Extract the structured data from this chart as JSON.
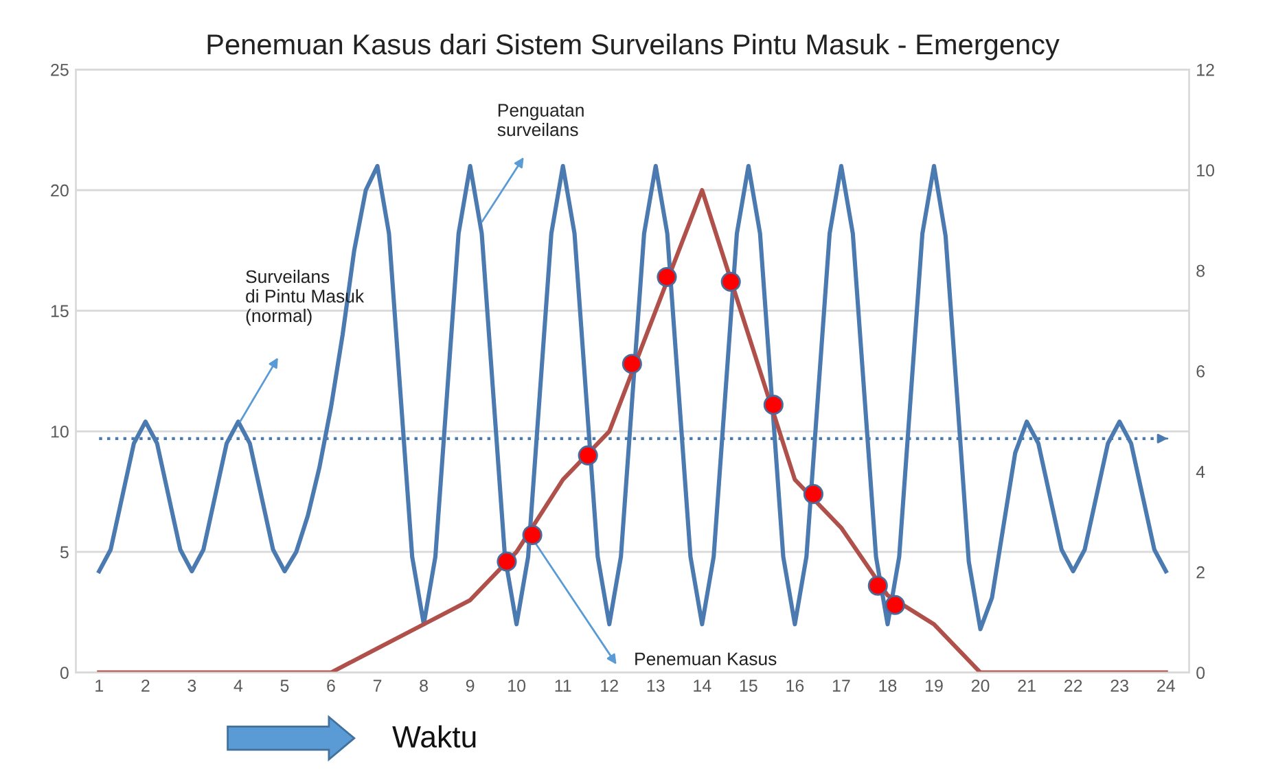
{
  "chart_data": {
    "type": "line",
    "title": "Penemuan Kasus dari Sistem Surveilans Pintu Masuk - Emergency",
    "xlabel": "Waktu",
    "x": [
      1,
      2,
      3,
      4,
      5,
      6,
      7,
      8,
      9,
      10,
      11,
      12,
      13,
      14,
      15,
      16,
      17,
      18,
      19,
      20,
      21,
      22,
      23,
      24
    ],
    "series": [
      {
        "color": "#4a7ab0",
        "x": [
          1,
          1.25,
          1.5,
          1.75,
          2,
          2.25,
          2.5,
          2.75,
          3,
          3.25,
          3.5,
          3.75,
          4,
          4.25,
          4.5,
          4.75,
          5,
          5.25,
          5.5,
          5.75,
          6,
          6.25,
          6.5,
          6.75,
          7,
          7.25,
          7.5,
          7.75,
          8,
          8.25,
          8.5,
          8.75,
          9,
          9.25,
          9.5,
          9.75,
          10,
          10.25,
          10.5,
          10.75,
          11,
          11.25,
          11.5,
          11.75,
          12,
          12.25,
          12.5,
          12.75,
          13,
          13.25,
          13.5,
          13.75,
          14,
          14.25,
          14.5,
          14.75,
          15,
          15.25,
          15.5,
          15.75,
          16,
          16.25,
          16.5,
          16.75,
          17,
          17.25,
          17.5,
          17.75,
          18,
          18.25,
          18.5,
          18.75,
          19,
          19.25,
          19.5,
          19.75,
          20,
          20.25,
          20.5,
          20.75,
          21,
          21.25,
          21.5,
          21.75,
          22,
          22.25,
          22.5,
          22.75,
          23,
          23.25,
          23.5,
          23.75,
          24
        ],
        "values": [
          4.2,
          5.1,
          7.3,
          9.5,
          10.4,
          9.5,
          7.3,
          5.1,
          4.2,
          5.1,
          7.3,
          9.5,
          10.4,
          9.5,
          7.3,
          5.1,
          4.2,
          5.0,
          6.5,
          8.5,
          11,
          14,
          17.5,
          20,
          21,
          18.2,
          11.5,
          4.8,
          2,
          4.8,
          11.5,
          18.2,
          21,
          18.2,
          11.5,
          4.8,
          2,
          4.8,
          11.5,
          18.2,
          21,
          18.2,
          11.5,
          4.8,
          2,
          4.8,
          11.5,
          18.2,
          21,
          18.2,
          11.5,
          4.8,
          2,
          4.8,
          11.5,
          18.2,
          21,
          18.2,
          11.5,
          4.8,
          2,
          4.8,
          11.5,
          18.2,
          21,
          18.2,
          11.5,
          4.8,
          2,
          4.8,
          11.5,
          18.2,
          21,
          18.1,
          11.4,
          4.6,
          1.8,
          3.1,
          6.1,
          9.1,
          10.4,
          9.5,
          7.3,
          5.1,
          4.2,
          5.1,
          7.3,
          9.5,
          10.4,
          9.5,
          7.3,
          5.1,
          4.2
        ]
      },
      {
        "color": "#b0504a",
        "values": [
          0,
          0,
          0,
          0,
          0,
          0,
          1,
          2,
          3,
          5,
          8,
          10,
          15,
          20,
          14,
          8,
          6,
          3.2,
          2,
          0,
          0,
          0,
          0,
          0
        ]
      },
      {
        "type": "scatter",
        "color": "#ff0000",
        "x": [
          9.79,
          10.34,
          11.54,
          12.49,
          13.24,
          14.62,
          15.54,
          16.4,
          17.79,
          18.16
        ],
        "values": [
          4.6,
          5.7,
          9.0,
          12.8,
          16.4,
          16.2,
          11.1,
          7.4,
          3.6,
          2.8
        ]
      }
    ],
    "xlim": [
      0.5,
      24.5
    ],
    "xticks": [
      1,
      2,
      3,
      4,
      5,
      6,
      7,
      8,
      9,
      10,
      11,
      12,
      13,
      14,
      15,
      16,
      17,
      18,
      19,
      20,
      21,
      22,
      23,
      24
    ],
    "ylim": [
      0,
      25
    ],
    "yticks": [
      0,
      5,
      10,
      15,
      20,
      25
    ],
    "y2lim": [
      0,
      12
    ],
    "y2ticks": [
      0,
      2,
      4,
      6,
      8,
      10,
      12
    ],
    "ref_lines": [
      {
        "axis": "y",
        "value": 9.7,
        "color": "#4a7ab0",
        "line_style": "dotted"
      }
    ],
    "annotations": [
      "Penguatan\nsurveilans",
      "Surveilans\ndi Pintu Masuk\n(normal)",
      "Penemuan Kasus"
    ],
    "grid": "y",
    "legend": false
  }
}
